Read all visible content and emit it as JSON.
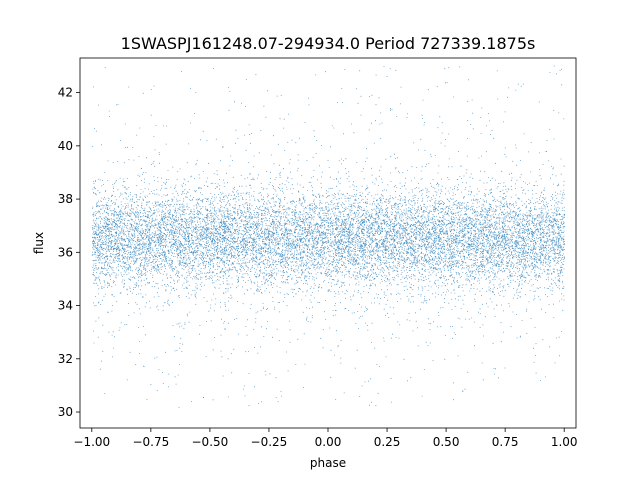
{
  "chart_data": {
    "type": "scatter",
    "title": "1SWASPJ161248.07-294934.0 Period 727339.1875s",
    "xlabel": "phase",
    "ylabel": "flux",
    "xlim": [
      -1.05,
      1.05
    ],
    "ylim": [
      29.4,
      43.3
    ],
    "x_ticks": [
      -1.0,
      -0.75,
      -0.5,
      -0.25,
      0.0,
      0.25,
      0.5,
      0.75,
      1.0
    ],
    "x_tick_labels": [
      "−1.00",
      "−0.75",
      "−0.50",
      "−0.25",
      "0.00",
      "0.25",
      "0.50",
      "0.75",
      "1.00"
    ],
    "y_ticks": [
      30,
      32,
      34,
      36,
      38,
      40,
      42
    ],
    "y_tick_labels": [
      "30",
      "32",
      "34",
      "36",
      "38",
      "40",
      "42"
    ],
    "grid": false,
    "marker_color": "#1f77b4",
    "series": [
      {
        "x_range": [
          -1.0,
          1.0
        ],
        "y_center": 36.5,
        "y_core_spread": 0.9,
        "y_outlier_range": [
          30.0,
          43.0
        ],
        "approx_points": 14000
      }
    ]
  }
}
